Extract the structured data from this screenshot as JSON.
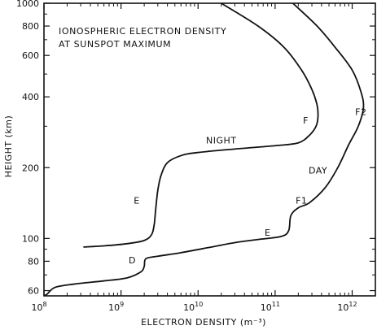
{
  "chart_data": {
    "type": "line",
    "title": "",
    "annotation_lines": [
      "IONOSPHERIC ELECTRON DENSITY",
      "AT SUNSPOT MAXIMUM"
    ],
    "xlabel": "ELECTRON DENSITY (m⁻³)",
    "ylabel": "HEIGHT (km)",
    "x_scale": "log",
    "y_scale": "log",
    "xlim": [
      100000000.0,
      2000000000000.0
    ],
    "ylim": [
      57,
      1000
    ],
    "grid": false,
    "x_ticks": [
      {
        "value": 100000000.0,
        "mantissa": "10",
        "exp": "8"
      },
      {
        "value": 1000000000.0,
        "mantissa": "10",
        "exp": "9"
      },
      {
        "value": 10000000000.0,
        "mantissa": "10",
        "exp": "10"
      },
      {
        "value": 100000000000.0,
        "mantissa": "10",
        "exp": "11"
      },
      {
        "value": 1000000000000.0,
        "mantissa": "10",
        "exp": "12"
      }
    ],
    "y_ticks": [
      {
        "value": 60,
        "label": "60"
      },
      {
        "value": 80,
        "label": "80"
      },
      {
        "value": 100,
        "label": "100"
      },
      {
        "value": 200,
        "label": "200"
      },
      {
        "value": 400,
        "label": "400"
      },
      {
        "value": 600,
        "label": "600"
      },
      {
        "value": 800,
        "label": "800"
      },
      {
        "value": 1000,
        "label": "1000"
      }
    ],
    "series": [
      {
        "points": [
          [
            330000000.0,
            92
          ],
          [
            600000000.0,
            93
          ],
          [
            1200000000.0,
            95
          ],
          [
            2000000000.0,
            98
          ],
          [
            2500000000.0,
            104
          ],
          [
            2700000000.0,
            115
          ],
          [
            2800000000.0,
            130
          ],
          [
            3000000000.0,
            160
          ],
          [
            3300000000.0,
            185
          ],
          [
            4000000000.0,
            210
          ],
          [
            6000000000.0,
            225
          ],
          [
            10000000000.0,
            232
          ],
          [
            30000000000.0,
            240
          ],
          [
            100000000000.0,
            248
          ],
          [
            200000000000.0,
            255
          ],
          [
            280000000000.0,
            275
          ],
          [
            340000000000.0,
            300
          ],
          [
            360000000000.0,
            330
          ],
          [
            350000000000.0,
            370
          ],
          [
            300000000000.0,
            430
          ],
          [
            220000000000.0,
            520
          ],
          [
            130000000000.0,
            650
          ],
          [
            60000000000.0,
            800
          ],
          [
            20000000000.0,
            1000
          ]
        ],
        "labels": [
          {
            "text": "NIGHT",
            "x": 20000000000.0,
            "y": 262
          },
          {
            "text": "E",
            "x": 1600000000.0,
            "y": 145
          },
          {
            "text": "F",
            "x": 250000000000.0,
            "y": 318
          }
        ]
      },
      {
        "points": [
          [
            100000000.0,
            57
          ],
          [
            110000000.0,
            58
          ],
          [
            140000000.0,
            62
          ],
          [
            250000000.0,
            64
          ],
          [
            600000000.0,
            66
          ],
          [
            1200000000.0,
            68
          ],
          [
            1800000000.0,
            72
          ],
          [
            2000000000.0,
            76
          ],
          [
            2100000000.0,
            82
          ],
          [
            3000000000.0,
            84
          ],
          [
            6000000000.0,
            87
          ],
          [
            15000000000.0,
            92
          ],
          [
            30000000000.0,
            96
          ],
          [
            60000000000.0,
            99
          ],
          [
            120000000000.0,
            102
          ],
          [
            150000000000.0,
            108
          ],
          [
            160000000000.0,
            125
          ],
          [
            200000000000.0,
            135
          ],
          [
            280000000000.0,
            142
          ],
          [
            450000000000.0,
            165
          ],
          [
            650000000000.0,
            200
          ],
          [
            900000000000.0,
            250
          ],
          [
            1200000000000.0,
            300
          ],
          [
            1400000000000.0,
            360
          ],
          [
            1300000000000.0,
            420
          ],
          [
            1000000000000.0,
            520
          ],
          [
            600000000000.0,
            650
          ],
          [
            350000000000.0,
            800
          ],
          [
            170000000000.0,
            1000
          ]
        ],
        "labels": [
          {
            "text": "DAY",
            "x": 360000000000.0,
            "y": 195
          },
          {
            "text": "E",
            "x": 80000000000.0,
            "y": 106
          },
          {
            "text": "D",
            "x": 1400000000.0,
            "y": 81
          },
          {
            "text": "F1",
            "x": 220000000000.0,
            "y": 145
          },
          {
            "text": "F2",
            "x": 1300000000000.0,
            "y": 345
          }
        ]
      }
    ]
  }
}
